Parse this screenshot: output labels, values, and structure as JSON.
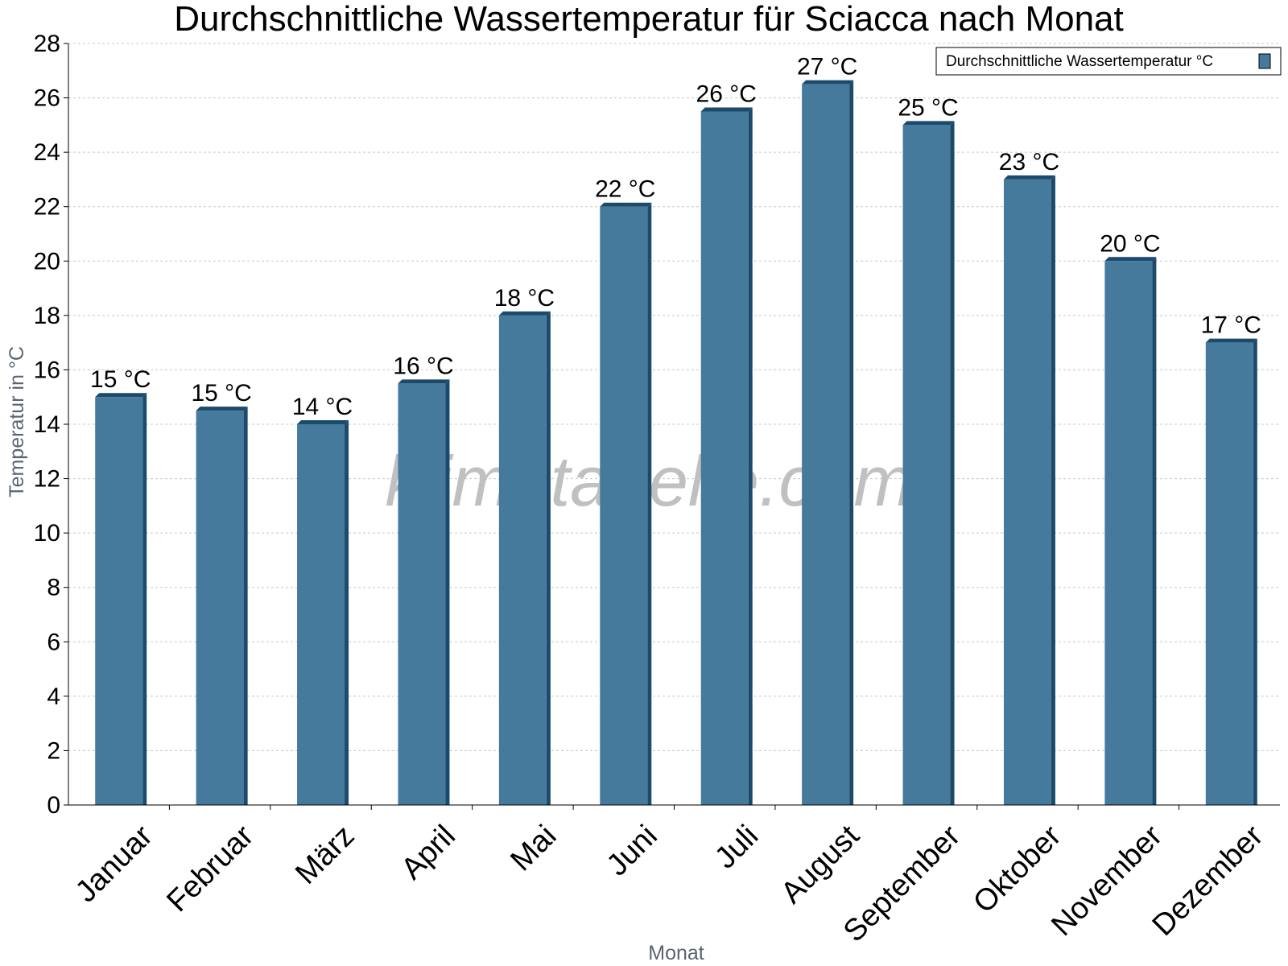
{
  "chart_data": {
    "type": "bar",
    "title": "Durchschnittliche Wassertemperatur für Sciacca nach Monat",
    "xlabel": "Monat",
    "ylabel": "Temperatur in °C",
    "categories": [
      "Januar",
      "Februar",
      "März",
      "April",
      "Mai",
      "Juni",
      "Juli",
      "August",
      "September",
      "Oktober",
      "November",
      "Dezember"
    ],
    "series": [
      {
        "name": "Durchschnittliche Wassertemperatur °C",
        "values": [
          15.0,
          14.5,
          14.0,
          15.5,
          18.0,
          22.0,
          25.5,
          26.5,
          25.0,
          23.0,
          20.0,
          17.0
        ],
        "labels": [
          "15 °C",
          "15 °C",
          "14 °C",
          "16 °C",
          "18 °C",
          "22 °C",
          "26 °C",
          "27 °C",
          "25 °C",
          "23 °C",
          "20 °C",
          "17 °C"
        ],
        "color": "#457a9c",
        "shade_color": "#1c4a6b"
      }
    ],
    "ylim": [
      0,
      28
    ],
    "yticks": [
      0,
      2,
      4,
      6,
      8,
      10,
      12,
      14,
      16,
      18,
      20,
      22,
      24,
      26,
      28
    ],
    "grid": true,
    "legend_position": "top-right",
    "watermark": "klimatabelle.com"
  }
}
